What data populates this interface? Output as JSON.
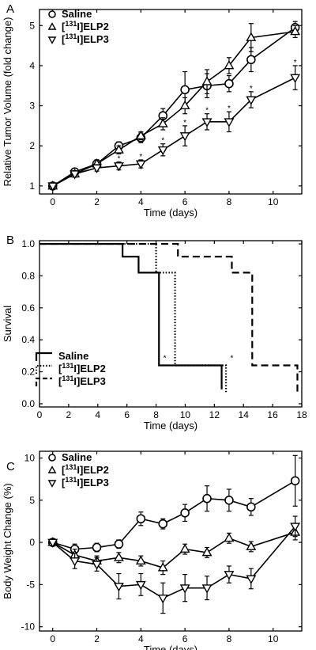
{
  "colors": {
    "ink": "#000000",
    "grid": "#444444",
    "background": "#ffffff"
  },
  "chart_data": [
    {
      "type": "line",
      "panel": "A",
      "xlabel": "Time (days)",
      "ylabel": "Relative Tumor Volume (fold change)",
      "xlim": [
        -0.6,
        11.3
      ],
      "ylim": [
        0.8,
        5.4
      ],
      "xticks": [
        0,
        2,
        4,
        6,
        8,
        10
      ],
      "yticks": [
        1,
        2,
        3,
        4,
        5
      ],
      "legend_position": "top-left",
      "series": [
        {
          "name": "Saline",
          "sup": "",
          "marker": "circle",
          "x": [
            0,
            1,
            2,
            3,
            4,
            5,
            6,
            7,
            8,
            9,
            11
          ],
          "y": [
            1.0,
            1.35,
            1.55,
            2.0,
            2.2,
            2.75,
            3.4,
            3.5,
            3.55,
            4.15,
            4.95
          ],
          "err": [
            0.05,
            0.08,
            0.1,
            0.1,
            0.12,
            0.18,
            0.45,
            0.3,
            0.2,
            0.3,
            0.15
          ]
        },
        {
          "name": "I]ELP2",
          "sup": "131",
          "marker": "triangle-up",
          "x": [
            0,
            1,
            2,
            3,
            4,
            5,
            6,
            7,
            8,
            9,
            11
          ],
          "y": [
            1.0,
            1.3,
            1.55,
            1.9,
            2.25,
            2.55,
            3.0,
            3.6,
            4.0,
            4.7,
            4.85
          ],
          "err": [
            0.05,
            0.08,
            0.1,
            0.1,
            0.1,
            0.15,
            0.2,
            0.3,
            0.2,
            0.35,
            0.15
          ]
        },
        {
          "name": "I]ELP3",
          "sup": "131",
          "marker": "triangle-down",
          "x": [
            0,
            1,
            2,
            3,
            4,
            5,
            6,
            7,
            8,
            9,
            11
          ],
          "y": [
            1.0,
            1.3,
            1.45,
            1.5,
            1.55,
            1.9,
            2.25,
            2.6,
            2.6,
            3.15,
            3.7
          ],
          "err": [
            0.05,
            0.08,
            0.08,
            0.1,
            0.1,
            0.15,
            0.25,
            0.2,
            0.25,
            0.2,
            0.3
          ]
        }
      ],
      "significance": [
        {
          "x": 3,
          "y": 1.62,
          "text": "*"
        },
        {
          "x": 4,
          "y": 1.67,
          "text": "*"
        },
        {
          "x": 5,
          "y": 2.07,
          "text": "*"
        },
        {
          "x": 6,
          "y": 2.52,
          "text": "*"
        },
        {
          "x": 7,
          "y": 2.82,
          "text": "*"
        },
        {
          "x": 8,
          "y": 2.87,
          "text": "*"
        },
        {
          "x": 9,
          "y": 3.37,
          "text": "*"
        },
        {
          "x": 11,
          "y": 4.02,
          "text": "*"
        }
      ]
    },
    {
      "type": "line",
      "panel": "B",
      "xlabel": "Time (days)",
      "ylabel": "Survival",
      "xlim": [
        0,
        18
      ],
      "ylim": [
        -0.02,
        1.02
      ],
      "xticks": [
        0,
        2,
        4,
        6,
        8,
        10,
        12,
        14,
        16,
        18
      ],
      "yticks": [
        0.0,
        0.2,
        0.4,
        0.6,
        0.8,
        1.0
      ],
      "legend_position": "bottom-left",
      "series": [
        {
          "name": "Saline",
          "sup": "",
          "style": "solid",
          "x": [
            0,
            5.7,
            5.7,
            6.8,
            6.8,
            8.2,
            8.2,
            12.5,
            12.5
          ],
          "y": [
            1.0,
            1.0,
            0.92,
            0.92,
            0.82,
            0.82,
            0.24,
            0.24,
            0.09
          ]
        },
        {
          "name": "I]ELP2",
          "sup": "131",
          "style": "dotted",
          "x": [
            0,
            8.0,
            8.0,
            9.3,
            9.3,
            12.8,
            12.8
          ],
          "y": [
            1.0,
            1.0,
            0.82,
            0.82,
            0.24,
            0.24,
            0.07
          ]
        },
        {
          "name": "I]ELP3",
          "sup": "131",
          "style": "dashed",
          "x": [
            0,
            9.5,
            9.5,
            13.2,
            13.2,
            14.6,
            14.6,
            17.7,
            17.7
          ],
          "y": [
            1.0,
            1.0,
            0.92,
            0.92,
            0.82,
            0.82,
            0.24,
            0.24,
            0.07
          ]
        }
      ],
      "significance": [
        {
          "x": 8.6,
          "y": 0.27,
          "text": "*"
        },
        {
          "x": 13.2,
          "y": 0.27,
          "text": "*"
        }
      ]
    },
    {
      "type": "line",
      "panel": "C",
      "xlabel": "Time (days)",
      "ylabel": "Body Weight Change (%)",
      "xlim": [
        -0.6,
        11.3
      ],
      "ylim": [
        -10.5,
        10.8
      ],
      "xticks": [
        0,
        2,
        4,
        6,
        8,
        10
      ],
      "yticks": [
        -10,
        -5,
        0,
        5,
        10
      ],
      "legend_position": "top-left",
      "series": [
        {
          "name": "Saline",
          "sup": "",
          "marker": "circle",
          "x": [
            0,
            1,
            2,
            3,
            4,
            5,
            6,
            7,
            8,
            9,
            11
          ],
          "y": [
            0,
            -0.8,
            -0.6,
            -0.2,
            2.8,
            2.2,
            3.5,
            5.2,
            5.0,
            4.2,
            7.3
          ],
          "err": [
            0.4,
            0.6,
            0.5,
            0.5,
            0.8,
            0.6,
            1.0,
            1.5,
            1.3,
            1.0,
            3.0
          ]
        },
        {
          "name": "I]ELP2",
          "sup": "131",
          "marker": "triangle-up",
          "x": [
            0,
            1,
            2,
            3,
            4,
            5,
            6,
            7,
            8,
            9,
            11
          ],
          "y": [
            0,
            -1.5,
            -2.2,
            -1.8,
            -2.2,
            -3.0,
            -0.8,
            -1.2,
            0.5,
            -0.5,
            1.2
          ],
          "err": [
            0.4,
            0.7,
            0.6,
            0.6,
            0.6,
            0.8,
            0.6,
            0.6,
            0.6,
            0.6,
            0.9
          ]
        },
        {
          "name": "I]ELP3",
          "sup": "131",
          "marker": "triangle-down",
          "x": [
            0,
            1,
            2,
            3,
            4,
            5,
            6,
            7,
            8,
            9,
            11
          ],
          "y": [
            0,
            -2.2,
            -2.6,
            -5.2,
            -5.0,
            -6.6,
            -5.4,
            -5.4,
            -3.8,
            -4.3,
            1.9
          ],
          "err": [
            0.4,
            0.9,
            0.8,
            1.5,
            1.3,
            1.8,
            1.6,
            1.4,
            1.0,
            1.2,
            1.2
          ]
        }
      ],
      "significance": []
    }
  ]
}
